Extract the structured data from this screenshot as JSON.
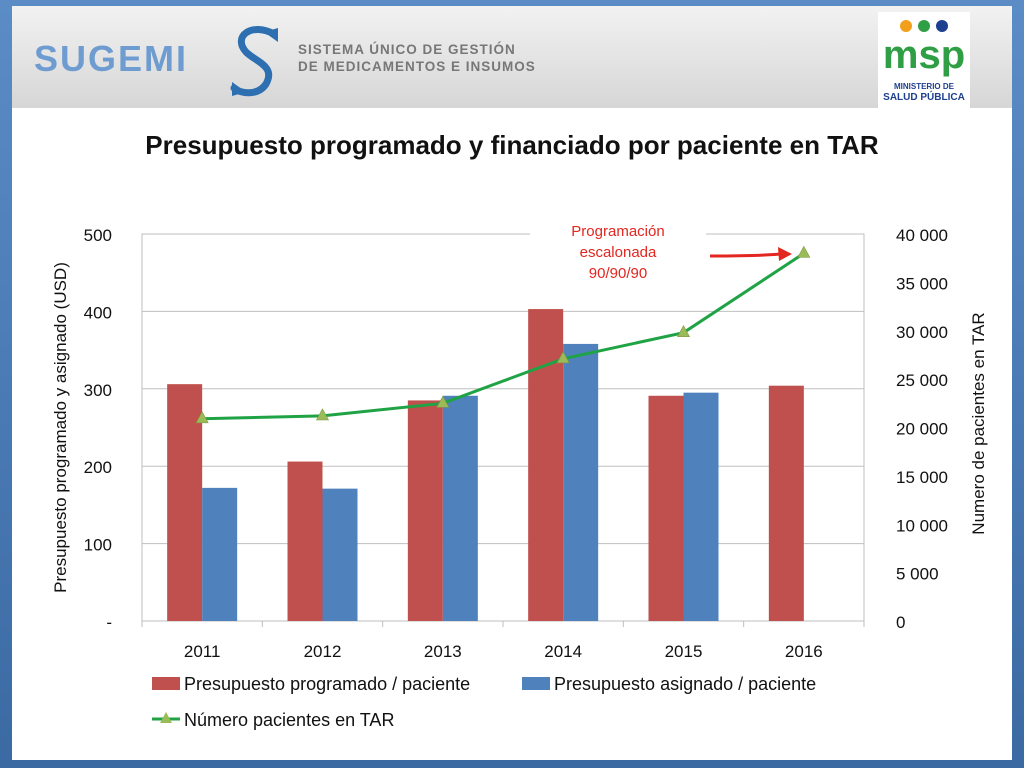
{
  "header": {
    "logo_left_word": "SUGEMI",
    "logo_left_line1": "SISTEMA ÚNICO DE GESTIÓN",
    "logo_left_line2": "DE MEDICAMENTOS E INSUMOS",
    "logo_right_word": "msp",
    "logo_right_line1": "MINISTERIO DE",
    "logo_right_line2": "SALUD PÚBLICA"
  },
  "colors": {
    "programado": "#c0504d",
    "asignado": "#4f81bd",
    "pacientes": "#1fa345",
    "marker": "#9bbb59",
    "annotation": "#e3261f"
  },
  "chart_data": {
    "type": "bar",
    "title": "Presupuesto programado y financiado por paciente en TAR",
    "categories": [
      "2011",
      "2012",
      "2013",
      "2014",
      "2015",
      "2016"
    ],
    "series": [
      {
        "name": "Presupuesto programado / paciente",
        "type": "bar",
        "axis": "left",
        "values": [
          306,
          206,
          285,
          403,
          291,
          304
        ]
      },
      {
        "name": "Presupuesto asignado / paciente",
        "type": "bar",
        "axis": "left",
        "values": [
          172,
          171,
          291,
          358,
          295,
          null
        ]
      },
      {
        "name": "Número pacientes en TAR",
        "type": "line",
        "axis": "right",
        "values": [
          20900,
          21200,
          22500,
          27100,
          29800,
          38000
        ]
      }
    ],
    "ylabel": "Presupuesto programado y  asignado (USD)",
    "y2label": "Numero de pacientes en TAR",
    "ylim": [
      0,
      500
    ],
    "y2lim": [
      0,
      40000
    ],
    "yticks": [
      "-",
      "100",
      "200",
      "300",
      "400",
      "500"
    ],
    "y2ticks": [
      "0",
      "5 000",
      "10 000",
      "15 000",
      "20 000",
      "25 000",
      "30 000",
      "35 000",
      "40 000"
    ],
    "annotation": [
      "Programación",
      "escalonada",
      "90/90/90"
    ],
    "legend_position": "bottom",
    "grid": true
  }
}
